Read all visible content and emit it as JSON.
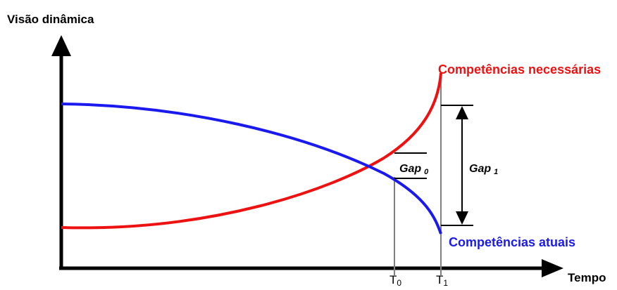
{
  "diagram": {
    "y_axis_label": "Visão dinâmica",
    "x_axis_label": "Tempo",
    "needed_label": "Competências necessárias",
    "current_label": "Competências atuais",
    "gap0": {
      "main": "Gap",
      "sub": "0"
    },
    "gap1": {
      "main": "Gap",
      "sub": "1"
    },
    "t0": {
      "main": "T",
      "sub": "0"
    },
    "t1": {
      "main": "T",
      "sub": "1"
    },
    "colors": {
      "needed": "#ee1111",
      "current": "#1a1aee",
      "axis": "#000000",
      "marker": "#808080"
    }
  }
}
